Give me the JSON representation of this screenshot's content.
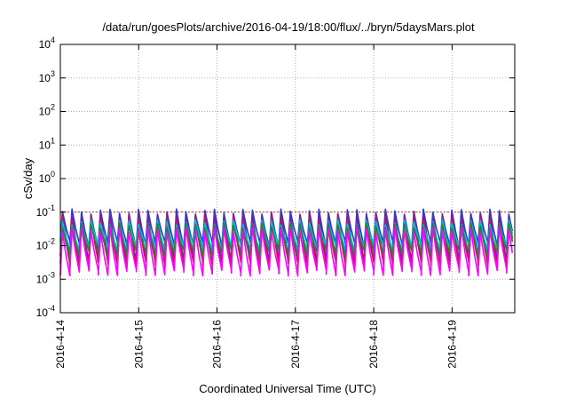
{
  "chart_data": {
    "type": "line",
    "title": "/data/run/goesPlots/archive/2016-04-19/18:00/flux/../bryn/5daysMars.plot",
    "xlabel": "Coordinated Universal Time (UTC)",
    "ylabel": "cSv/day",
    "x_tick_labels": [
      "2016-4-14",
      "2016-4-15",
      "2016-4-16",
      "2016-4-17",
      "2016-4-18",
      "2016-4-19"
    ],
    "xlim": [
      0,
      5.8
    ],
    "y_scale": "log",
    "ylim": [
      0.0001,
      10000
    ],
    "y_ticks": [
      {
        "base": "10",
        "exp": "-4"
      },
      {
        "base": "10",
        "exp": "-3"
      },
      {
        "base": "10",
        "exp": "-2"
      },
      {
        "base": "10",
        "exp": "-1"
      },
      {
        "base": "10",
        "exp": "0"
      },
      {
        "base": "10",
        "exp": "1"
      },
      {
        "base": "10",
        "exp": "2"
      },
      {
        "base": "10",
        "exp": "3"
      },
      {
        "base": "10",
        "exp": "4"
      }
    ],
    "reference_line": {
      "y": 0.1,
      "color": "#d62728"
    },
    "grid": true,
    "cycles_per_day": 8.25,
    "series": [
      {
        "color": "#1f3fd6",
        "peak": 0.105,
        "trough": 0.011
      },
      {
        "color": "#7b1fa2",
        "peak": 0.085,
        "trough": 0.0042
      },
      {
        "color": "#c2185b",
        "peak": 0.06,
        "trough": 0.0028
      },
      {
        "color": "#00bcd4",
        "peak": 0.05,
        "trough": 0.009
      },
      {
        "color": "#2e7d32",
        "peak": 0.04,
        "trough": 0.006
      },
      {
        "color": "#ff00ff",
        "peak": 0.03,
        "trough": 0.0016
      }
    ]
  }
}
